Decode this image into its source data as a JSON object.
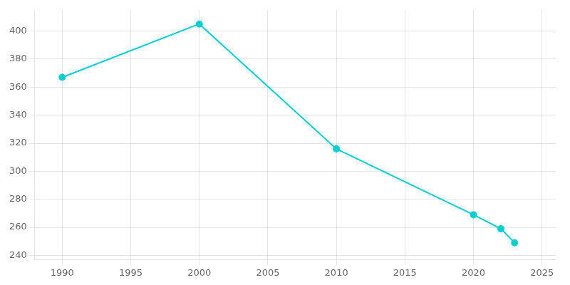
{
  "chart_data": {
    "type": "line",
    "x": [
      1990,
      2000,
      2010,
      2020,
      2022,
      2023
    ],
    "values": [
      367,
      405,
      316,
      269,
      259,
      249
    ],
    "color": "#00CED1",
    "marker": "circle",
    "xlim": [
      1988,
      2026
    ],
    "ylim": [
      237,
      415
    ],
    "xticks": [
      1990,
      1995,
      2000,
      2005,
      2010,
      2015,
      2020,
      2025
    ],
    "yticks": [
      240,
      260,
      280,
      300,
      320,
      340,
      360,
      380,
      400
    ],
    "grid": true
  }
}
